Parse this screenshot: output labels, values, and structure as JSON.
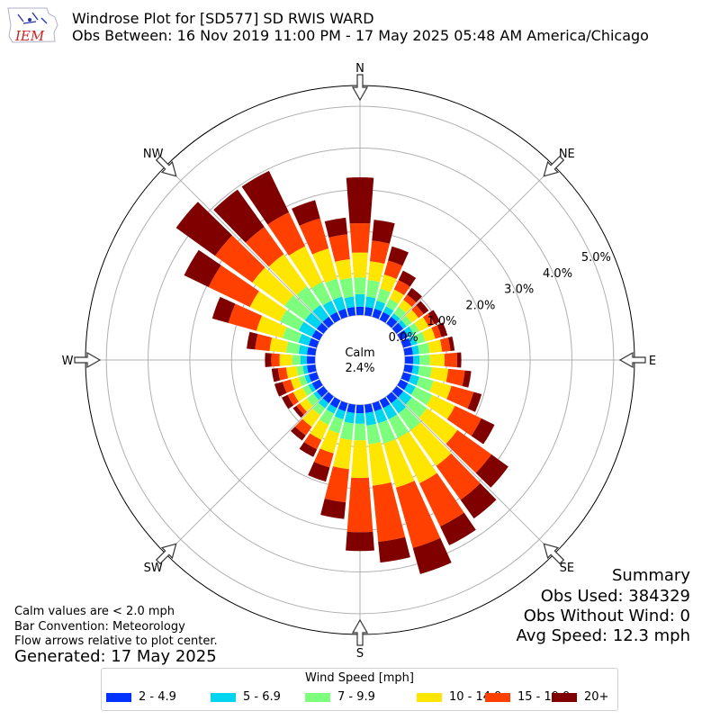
{
  "header": {
    "title_line1": "Windrose Plot for [SD577] SD RWIS WARD",
    "title_line2": "Obs Between: 16 Nov 2019 11:00 PM - 17 May 2025 05:48 AM America/Chicago",
    "logo_text": "IEM"
  },
  "notes": {
    "calm_note": "Calm values are < 2.0 mph",
    "bar_convention": "Bar Convention: Meteorology",
    "flow_arrows": "Flow arrows relative to plot center.",
    "generated": "Generated: 17 May 2025"
  },
  "summary": {
    "title": "Summary",
    "obs_used": "Obs Used: 384329",
    "obs_without_wind": "Obs Without Wind: 0",
    "avg_speed": "Avg Speed: 12.3 mph"
  },
  "chart_data": {
    "type": "windrose",
    "calm_label": "Calm",
    "calm_value": "2.4%",
    "direction_labels": [
      "N",
      "NE",
      "E",
      "SE",
      "S",
      "SW",
      "W",
      "NW"
    ],
    "radial_ticks": [
      "0.0%",
      "1.0%",
      "2.0%",
      "3.0%",
      "4.0%",
      "5.0%"
    ],
    "radial_max": 5.5,
    "legend_title": "Wind Speed [mph]",
    "bins": [
      {
        "label": "2 - 4.9",
        "color": "#0033ff"
      },
      {
        "label": "5 - 6.9",
        "color": "#00d5f0"
      },
      {
        "label": "7 - 9.9",
        "color": "#7dff7d"
      },
      {
        "label": "10 - 14.9",
        "color": "#ffe600"
      },
      {
        "label": "15 - 19.9",
        "color": "#ff4000"
      },
      {
        "label": "20+",
        "color": "#800000"
      }
    ],
    "directions_deg": [
      0,
      10,
      20,
      30,
      40,
      50,
      60,
      70,
      80,
      90,
      100,
      110,
      120,
      130,
      140,
      150,
      160,
      170,
      180,
      190,
      200,
      210,
      220,
      230,
      240,
      250,
      260,
      270,
      280,
      290,
      300,
      310,
      320,
      330,
      340,
      350
    ],
    "cumulative_percent": [
      [
        0.2,
        0.5,
        0.9,
        1.5,
        2.2,
        3.3
      ],
      [
        0.2,
        0.45,
        0.85,
        1.3,
        1.8,
        2.3
      ],
      [
        0.2,
        0.4,
        0.7,
        1.05,
        1.4,
        1.75
      ],
      [
        0.2,
        0.35,
        0.55,
        0.8,
        1.05,
        1.3
      ],
      [
        0.2,
        0.3,
        0.5,
        0.7,
        0.85,
        1.05
      ],
      [
        0.2,
        0.3,
        0.45,
        0.65,
        0.8,
        0.95
      ],
      [
        0.2,
        0.35,
        0.5,
        0.75,
        0.9,
        1.05
      ],
      [
        0.2,
        0.35,
        0.55,
        0.8,
        0.95,
        1.1
      ],
      [
        0.2,
        0.35,
        0.6,
        0.9,
        1.1,
        1.2
      ],
      [
        0.2,
        0.35,
        0.6,
        0.95,
        1.25,
        1.35
      ],
      [
        0.2,
        0.35,
        0.65,
        1.05,
        1.45,
        1.6
      ],
      [
        0.2,
        0.4,
        0.75,
        1.2,
        1.75,
        1.95
      ],
      [
        0.2,
        0.4,
        0.85,
        1.45,
        2.15,
        2.5
      ],
      [
        0.2,
        0.45,
        0.9,
        1.8,
        2.8,
        3.3
      ],
      [
        0.2,
        0.5,
        1.0,
        2.05,
        3.05,
        3.6
      ],
      [
        0.2,
        0.5,
        1.0,
        2.2,
        3.35,
        3.85
      ],
      [
        0.2,
        0.5,
        1.0,
        2.1,
        3.6,
        4.25
      ],
      [
        0.2,
        0.5,
        0.95,
        1.95,
        3.3,
        3.8
      ],
      [
        0.2,
        0.45,
        0.85,
        1.75,
        3.05,
        3.5
      ],
      [
        0.2,
        0.45,
        0.85,
        1.55,
        2.35,
        2.75
      ],
      [
        0.2,
        0.4,
        0.75,
        1.25,
        1.6,
        1.95
      ],
      [
        0.2,
        0.35,
        0.65,
        1.05,
        1.3,
        1.5
      ],
      [
        0.2,
        0.35,
        0.55,
        0.9,
        1.15,
        1.3
      ],
      [
        0.2,
        0.3,
        0.5,
        0.7,
        0.8,
        0.9
      ],
      [
        0.2,
        0.3,
        0.45,
        0.7,
        0.85,
        1.0
      ],
      [
        0.2,
        0.3,
        0.45,
        0.65,
        0.85,
        1.05
      ],
      [
        0.2,
        0.3,
        0.45,
        0.7,
        0.9,
        1.05
      ],
      [
        0.2,
        0.35,
        0.55,
        0.85,
        1.05,
        1.2
      ],
      [
        0.2,
        0.4,
        0.7,
        1.1,
        1.45,
        1.65
      ],
      [
        0.2,
        0.45,
        0.85,
        1.5,
        2.2,
        2.6
      ],
      [
        0.2,
        0.55,
        1.05,
        1.85,
        2.95,
        3.6
      ],
      [
        0.2,
        0.55,
        1.15,
        2.1,
        3.2,
        4.35
      ],
      [
        0.2,
        0.55,
        1.1,
        2.05,
        2.85,
        3.95
      ],
      [
        0.2,
        0.5,
        1.0,
        1.95,
        2.85,
        3.95
      ],
      [
        0.2,
        0.5,
        0.95,
        1.7,
        2.45,
        2.9
      ],
      [
        0.2,
        0.45,
        0.9,
        1.35,
        1.95,
        2.35
      ]
    ]
  }
}
